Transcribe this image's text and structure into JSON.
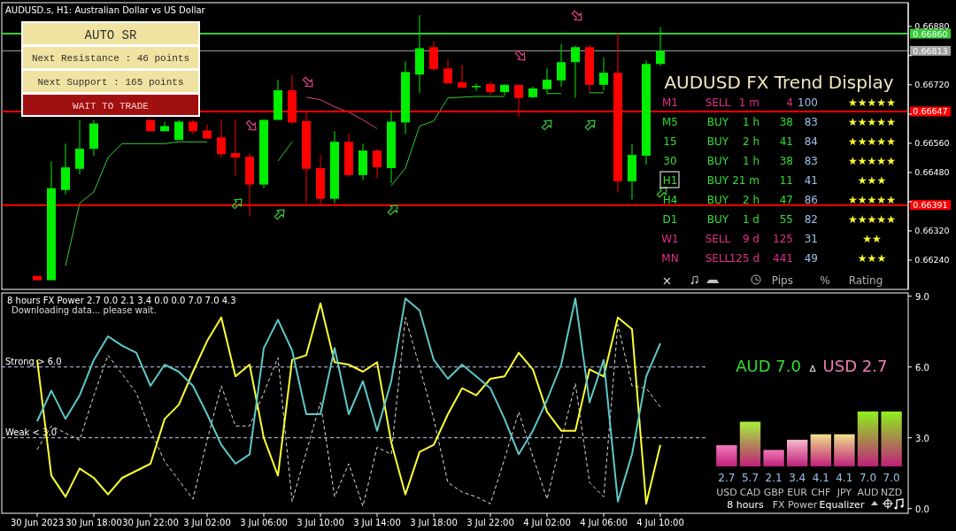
{
  "chart_data": [
    {
      "type": "candlestick",
      "title": "AUDUSD.s, H1:  Australian Dollar vs US Dollar",
      "categories": [
        null,
        null,
        null,
        null,
        null,
        null,
        null,
        null,
        null,
        null,
        null,
        null,
        null,
        null,
        null,
        null,
        null,
        null,
        null,
        null,
        null,
        null,
        null,
        null,
        null,
        null,
        null,
        null,
        null,
        null,
        null,
        null,
        null,
        null,
        null,
        null,
        null,
        null,
        null,
        null,
        null,
        null,
        null,
        null,
        null,
        null,
        null,
        null,
        null,
        null,
        null,
        null,
        null,
        null,
        null,
        null,
        null,
        null,
        null,
        null,
        null,
        null,
        null,
        null
      ],
      "ohlc": [
        null,
        null,
        [
          0.66197,
          0.66197,
          0.66185,
          0.66185
        ],
        [
          0.66185,
          0.66511,
          0.66185,
          0.66437
        ],
        [
          0.66432,
          0.66559,
          0.6642,
          0.66494
        ],
        [
          0.6649,
          0.66624,
          0.66475,
          0.66545
        ],
        [
          0.66545,
          0.66624,
          0.66526,
          0.66614
        ],
        null,
        null,
        null,
        [
          0.66624,
          0.66624,
          0.66593,
          0.66593
        ],
        [
          0.66593,
          0.66619,
          0.66593,
          0.66607
        ],
        [
          0.66569,
          0.66624,
          0.66569,
          0.66619
        ],
        [
          0.66619,
          0.66624,
          0.66585,
          0.66593
        ],
        [
          0.66595,
          0.66612,
          0.66573,
          0.66573
        ],
        [
          0.66576,
          0.66624,
          0.66521,
          0.6653
        ],
        [
          0.66533,
          0.66624,
          0.66471,
          0.66521
        ],
        [
          0.66523,
          0.66533,
          0.6636,
          0.66447
        ],
        [
          0.66447,
          0.66624,
          0.66437,
          0.66624
        ],
        [
          0.66624,
          0.66734,
          0.66624,
          0.66705
        ],
        [
          0.66705,
          0.66746,
          0.66612,
          0.66617
        ],
        [
          0.66621,
          0.66648,
          0.66396,
          0.6649
        ],
        [
          0.66492,
          0.66528,
          0.66389,
          0.66408
        ],
        [
          0.66408,
          0.66593,
          0.66396,
          0.66564
        ],
        [
          0.66564,
          0.66588,
          0.66468,
          0.66473
        ],
        [
          0.66473,
          0.66559,
          0.66459,
          0.6654
        ],
        [
          0.6654,
          0.66545,
          0.66463,
          0.66494
        ],
        [
          0.66492,
          0.66648,
          0.66451,
          0.66619
        ],
        [
          0.66617,
          0.66784,
          0.66585,
          0.66755
        ],
        [
          0.66748,
          0.66911,
          0.66698,
          0.6682
        ],
        [
          0.66823,
          0.66839,
          0.66758,
          0.66763
        ],
        [
          0.66765,
          0.66791,
          0.66724,
          0.66724
        ],
        [
          0.66727,
          0.66775,
          0.66712,
          0.66712
        ],
        [
          0.66715,
          0.66724,
          0.66703,
          0.66717
        ],
        [
          0.66722,
          0.66729,
          0.66693,
          0.667
        ],
        [
          0.667,
          0.6672,
          0.66691,
          0.6672
        ],
        [
          0.6672,
          0.6672,
          0.66631,
          0.66684
        ],
        [
          0.66686,
          0.66715,
          0.66684,
          0.6671
        ],
        [
          0.66708,
          0.66765,
          0.66696,
          0.66734
        ],
        [
          0.66732,
          0.66832,
          0.66715,
          0.66782
        ],
        [
          0.66782,
          0.66827,
          0.66684,
          0.66823
        ],
        [
          0.66823,
          0.6683,
          0.66698,
          0.6672
        ],
        [
          0.6672,
          0.66794,
          0.66705,
          0.66753
        ],
        [
          0.66753,
          0.66863,
          0.66425,
          0.66456
        ],
        [
          0.66456,
          0.66557,
          0.66406,
          0.66528
        ],
        [
          0.66526,
          0.66787,
          0.66502,
          0.66777
        ],
        [
          0.66777,
          0.66878,
          0.66772,
          0.66813
        ],
        null,
        null,
        null,
        null,
        null,
        null,
        null,
        null,
        null,
        null,
        null,
        null,
        null,
        null,
        null,
        null,
        null
      ],
      "series": [
        {
          "type": "line",
          "color": "#33cc33",
          "values": [
            null,
            null,
            null,
            null,
            0.66224,
            0.66396,
            0.66427,
            0.66521,
            0.66559,
            0.66559,
            0.66559,
            0.66559,
            0.66564,
            0.66564,
            0.66564,
            null,
            null,
            null,
            null,
            0.66511,
            0.66564,
            null,
            null,
            null,
            null,
            null,
            null,
            0.66444,
            0.66492,
            0.66607,
            0.66621,
            0.66684,
            0.66686,
            0.66688,
            0.66688,
            0.66688,
            null,
            null,
            0.66696,
            0.66696,
            null,
            0.66698,
            0.66698,
            null,
            null,
            null,
            null,
            null,
            null,
            null,
            null,
            null,
            null,
            null,
            null,
            null,
            null,
            null,
            null,
            null,
            null,
            null,
            null,
            null
          ]
        },
        {
          "type": "line",
          "color": "#e0408a",
          "values": [
            null,
            null,
            null,
            null,
            null,
            null,
            null,
            null,
            null,
            null,
            null,
            null,
            null,
            null,
            null,
            null,
            null,
            null,
            null,
            null,
            null,
            0.66686,
            0.66679,
            0.6666,
            0.66645,
            0.66624,
            0.666,
            null,
            null,
            null,
            null,
            null,
            null,
            null,
            null,
            null,
            null,
            null,
            null,
            null,
            null,
            null,
            null,
            null,
            null,
            null,
            null,
            null,
            null,
            null,
            null,
            null,
            null,
            null,
            null,
            null,
            null,
            null,
            null,
            null,
            null,
            null,
            null,
            null
          ]
        }
      ],
      "ylim": [
        0.6616,
        0.6694
      ],
      "yticks": [
        {
          "value": 0.6624,
          "label": "0.66240"
        },
        {
          "value": 0.6632,
          "label": "0.66320"
        },
        {
          "value": 0.664,
          "label": null
        },
        {
          "value": 0.6648,
          "label": "0.66480"
        },
        {
          "value": 0.6656,
          "label": "0.66560"
        },
        {
          "value": 0.6664,
          "label": null
        },
        {
          "value": 0.6672,
          "label": "0.66720"
        },
        {
          "value": 0.668,
          "label": null
        },
        {
          "value": 0.6688,
          "label": "0.66880"
        }
      ],
      "tick_labels": "y",
      "ref_lines": [
        {
          "axis": "y",
          "value": 0.6686,
          "label": "0.66860",
          "color": "#33cc33"
        },
        {
          "axis": "y",
          "value": 0.66813,
          "label": "0.66813",
          "color": "#a0a0a0"
        },
        {
          "axis": "y",
          "value": 0.66647,
          "label": "0.66647",
          "color": "#ff0000"
        },
        {
          "axis": "y",
          "value": 0.66391,
          "label": "0.66391",
          "color": "#ff0000"
        }
      ],
      "annotations": [
        "AUTO SR",
        "Next Resistance : 46 points",
        "Next Support : 165 points",
        "WAIT TO TRADE"
      ]
    },
    {
      "type": "line",
      "title": "8 hours FX Power 2.7 0.0 2.1 3.4 0.0 0.0 7.0 7.0 4.3",
      "subtitle": "Downloading data... please wait.",
      "categories": [
        null,
        null,
        "30 Jun 2023",
        null,
        null,
        null,
        "30 Jun 18:00",
        null,
        null,
        null,
        "30 Jun 22:00",
        null,
        null,
        null,
        "3 Jul 02:00",
        null,
        null,
        null,
        "3 Jul 06:00",
        null,
        null,
        null,
        "3 Jul 10:00",
        null,
        null,
        null,
        "3 Jul 14:00",
        null,
        null,
        null,
        "3 Jul 18:00",
        null,
        null,
        null,
        "3 Jul 22:00",
        null,
        null,
        null,
        "4 Jul 02:00",
        null,
        null,
        null,
        "4 Jul 06:00",
        null,
        null,
        null,
        "4 Jul 10:00",
        null,
        null,
        null,
        null,
        null,
        null,
        null,
        null,
        null,
        null,
        null,
        null,
        null,
        null,
        null,
        null,
        null
      ],
      "series": [
        {
          "color": "#dddddd",
          "line_style": "dashed",
          "values": [
            null,
            null,
            2.5,
            3.5,
            3.2,
            2.9,
            4.8,
            6.5,
            5.7,
            4.9,
            3.3,
            2.0,
            1.2,
            0.4,
            2.9,
            5.2,
            3.5,
            3.5,
            4.9,
            6.4,
            0.3,
            2.4,
            4.5,
            0.5,
            1.9,
            0.1,
            2.6,
            2.3,
            8.1,
            6.0,
            3.8,
            1.1,
            0.7,
            0.5,
            0.2,
            2.1,
            4.1,
            2.2,
            0.4,
            2.9,
            5.3,
            1.1,
            0.5,
            7.8,
            5.2,
            5.1,
            4.3,
            null,
            null,
            null,
            null,
            null,
            null,
            null,
            null,
            null,
            null,
            null,
            null,
            null,
            null,
            null,
            null,
            null
          ]
        },
        {
          "color": "#ffff33",
          "values": [
            null,
            null,
            6.3,
            1.4,
            0.5,
            1.7,
            1.3,
            0.6,
            1.3,
            1.6,
            1.9,
            3.8,
            4.4,
            5.8,
            7.1,
            8.1,
            5.6,
            6.1,
            3.0,
            1.4,
            6.3,
            6.5,
            8.7,
            6.2,
            6.1,
            5.8,
            6.2,
            2.8,
            0.6,
            2.4,
            2.7,
            4.0,
            5.1,
            4.8,
            5.5,
            5.6,
            6.6,
            5.9,
            4.1,
            3.3,
            3.3,
            5.9,
            5.6,
            8.1,
            7.6,
            0.2,
            2.7,
            null,
            null,
            null,
            null,
            null,
            null,
            null,
            null,
            null,
            null,
            null,
            null,
            null,
            null,
            null,
            null,
            null
          ]
        },
        {
          "color": "#5fc8c8",
          "values": [
            null,
            null,
            3.7,
            5.0,
            3.8,
            4.8,
            6.3,
            7.3,
            6.9,
            6.6,
            5.2,
            6.1,
            5.8,
            5.2,
            4.0,
            2.7,
            1.9,
            2.3,
            6.8,
            8.0,
            6.7,
            4.0,
            4.0,
            6.8,
            4.0,
            5.4,
            3.3,
            5.4,
            8.9,
            8.4,
            6.3,
            5.5,
            6.1,
            5.6,
            5.1,
            3.8,
            2.3,
            3.3,
            4.6,
            6.1,
            8.9,
            4.5,
            6.3,
            0.3,
            2.3,
            5.6,
            7.0,
            null,
            null,
            null,
            null,
            null,
            null,
            null,
            null,
            null,
            null,
            null,
            null,
            null,
            null,
            null,
            null,
            null
          ]
        }
      ],
      "ylim": [
        -0.2,
        9.1
      ],
      "yticks": [
        {
          "value": 0,
          "label": "0.0"
        },
        {
          "value": 3,
          "label": "3.0"
        },
        {
          "value": 6,
          "label": "6.0"
        },
        {
          "value": 9,
          "label": "9.0"
        }
      ],
      "ref_lines": [
        {
          "axis": "y",
          "value": 6,
          "label": "Strong > 6.0",
          "color": "#c8c8e8",
          "line_style": "dashed"
        },
        {
          "axis": "y",
          "value": 3,
          "label": "Weak < 3.0",
          "color": "#c8c8e8",
          "line_style": "dashed"
        }
      ]
    },
    {
      "type": "bar",
      "categories": [
        "USD",
        "CAD",
        "GBP",
        "EUR",
        "CHF",
        "JPY",
        "AUD",
        "NZD"
      ],
      "values": [
        2.7,
        5.7,
        2.1,
        3.4,
        4.1,
        4.1,
        7.0,
        7.0
      ],
      "value_labels": [
        "2.7",
        "5.7",
        "2.1",
        "3.4",
        "4.1",
        "4.1",
        "7.0",
        "7.0"
      ],
      "colors": [
        "#f07ab8",
        "#a6f03c",
        "#f07ab8",
        "#f5b8cc",
        "#f0e08c",
        "#f0e08c",
        "#8ef01e",
        "#8ef01e"
      ],
      "annotations": [
        "AUD 7.0",
        "∆",
        "USD 2.7",
        "8 hours",
        "FX Power",
        "Equalizer"
      ]
    },
    {
      "type": "other",
      "title": "AUDUSD FX Trend Display",
      "colors": [
        "#e0308a",
        "#33dd33",
        "#33dd33",
        "#33dd33",
        "#33dd33",
        "#33dd33",
        "#33dd33",
        "#e0308a",
        "#e0308a"
      ],
      "annotations": [
        "M1",
        "SELL",
        "1 m",
        "4",
        "100",
        "★★★★★",
        "M5",
        "BUY",
        "1 h",
        "38",
        "83",
        "★★★★★",
        "15",
        "BUY",
        "2 h",
        "41",
        "84",
        "★★★★★",
        "30",
        "BUY",
        "1 h",
        "38",
        "83",
        "★★★★★",
        "H1",
        "BUY",
        "21 m",
        "11",
        "41",
        "★★★",
        "H4",
        "BUY",
        "2 h",
        "47",
        "86",
        "★★★★★",
        "D1",
        "BUY",
        "1 d",
        "55",
        "82",
        "★★★★★",
        "W1",
        "SELL",
        "9 d",
        "125",
        "31",
        "★★",
        "MN",
        "SELL",
        "125 d",
        "441",
        "49",
        "★★★",
        "Pips",
        "%",
        "Rating"
      ]
    }
  ]
}
